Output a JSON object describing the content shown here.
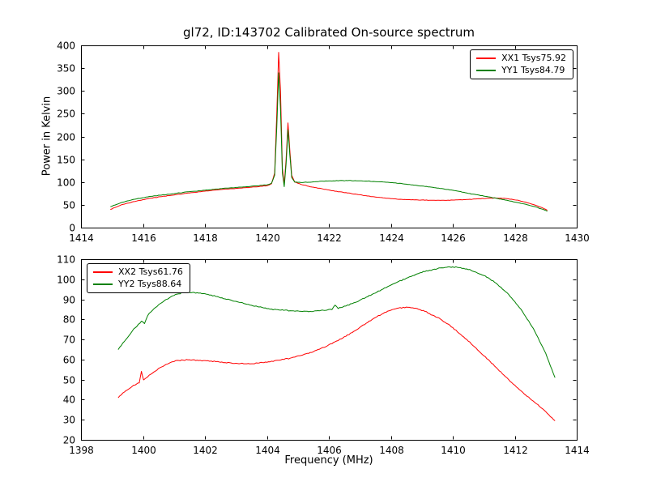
{
  "figure": {
    "background": "#ffffff",
    "axis_color": "#000000"
  },
  "chart_data": [
    {
      "type": "line",
      "title": "gl72, ID:143702 Calibrated On-source spectrum",
      "xlabel": "",
      "ylabel": "Power in Kelvin",
      "xlim": [
        1414,
        1430
      ],
      "ylim": [
        0,
        400
      ],
      "xticks": [
        1414,
        1416,
        1418,
        1420,
        1422,
        1424,
        1426,
        1428,
        1430
      ],
      "yticks": [
        0,
        50,
        100,
        150,
        200,
        250,
        300,
        350,
        400
      ],
      "grid": false,
      "legend_position": "top-right",
      "series": [
        {
          "name": "XX1 Tsys75.92",
          "color": "#ff0000",
          "noise": 0.8,
          "points": [
            [
              1414.95,
              40
            ],
            [
              1415.3,
              50
            ],
            [
              1415.7,
              57
            ],
            [
              1416.2,
              64
            ],
            [
              1416.8,
              70
            ],
            [
              1417.4,
              75
            ],
            [
              1418.0,
              80
            ],
            [
              1418.6,
              84
            ],
            [
              1419.2,
              87
            ],
            [
              1419.7,
              90
            ],
            [
              1420.0,
              92
            ],
            [
              1420.15,
              96
            ],
            [
              1420.25,
              120
            ],
            [
              1420.32,
              250
            ],
            [
              1420.38,
              385
            ],
            [
              1420.44,
              300
            ],
            [
              1420.5,
              130
            ],
            [
              1420.56,
              95
            ],
            [
              1420.62,
              150
            ],
            [
              1420.68,
              230
            ],
            [
              1420.74,
              170
            ],
            [
              1420.8,
              115
            ],
            [
              1420.9,
              100
            ],
            [
              1421.1,
              95
            ],
            [
              1421.4,
              90
            ],
            [
              1421.8,
              85
            ],
            [
              1422.3,
              79
            ],
            [
              1422.8,
              74
            ],
            [
              1423.3,
              69
            ],
            [
              1423.8,
              65
            ],
            [
              1424.3,
              62
            ],
            [
              1424.8,
              61
            ],
            [
              1425.3,
              60
            ],
            [
              1425.8,
              60
            ],
            [
              1426.3,
              61
            ],
            [
              1426.8,
              63
            ],
            [
              1427.3,
              65
            ],
            [
              1427.7,
              64
            ],
            [
              1428.1,
              60
            ],
            [
              1428.5,
              53
            ],
            [
              1428.8,
              46
            ],
            [
              1429.05,
              38
            ]
          ]
        },
        {
          "name": "YY1 Tsys84.79",
          "color": "#008000",
          "noise": 0.8,
          "points": [
            [
              1414.95,
              46
            ],
            [
              1415.3,
              55
            ],
            [
              1415.7,
              62
            ],
            [
              1416.2,
              68
            ],
            [
              1416.8,
              73
            ],
            [
              1417.4,
              78
            ],
            [
              1418.0,
              82
            ],
            [
              1418.6,
              86
            ],
            [
              1419.2,
              89
            ],
            [
              1419.7,
              92
            ],
            [
              1420.0,
              94
            ],
            [
              1420.15,
              97
            ],
            [
              1420.25,
              115
            ],
            [
              1420.32,
              220
            ],
            [
              1420.38,
              340
            ],
            [
              1420.44,
              260
            ],
            [
              1420.5,
              120
            ],
            [
              1420.56,
              90
            ],
            [
              1420.62,
              140
            ],
            [
              1420.68,
              215
            ],
            [
              1420.74,
              160
            ],
            [
              1420.8,
              110
            ],
            [
              1420.9,
              100
            ],
            [
              1421.1,
              99
            ],
            [
              1421.4,
              100
            ],
            [
              1421.8,
              102
            ],
            [
              1422.3,
              103
            ],
            [
              1422.8,
              103
            ],
            [
              1423.3,
              102
            ],
            [
              1423.8,
              100
            ],
            [
              1424.3,
              97
            ],
            [
              1424.8,
              93
            ],
            [
              1425.3,
              89
            ],
            [
              1426.0,
              82
            ],
            [
              1426.6,
              74
            ],
            [
              1427.2,
              67
            ],
            [
              1427.8,
              59
            ],
            [
              1428.3,
              52
            ],
            [
              1428.7,
              45
            ],
            [
              1429.05,
              36
            ]
          ]
        }
      ]
    },
    {
      "type": "line",
      "title": "",
      "xlabel": "Frequency (MHz)",
      "ylabel": "",
      "xlim": [
        1398,
        1414
      ],
      "ylim": [
        20,
        110
      ],
      "xticks": [
        1398,
        1400,
        1402,
        1404,
        1406,
        1408,
        1410,
        1412,
        1414
      ],
      "yticks": [
        20,
        30,
        40,
        50,
        60,
        70,
        80,
        90,
        100,
        110
      ],
      "grid": false,
      "legend_position": "top-left",
      "series": [
        {
          "name": "XX2 Tsys61.76",
          "color": "#ff0000",
          "noise": 0.4,
          "points": [
            [
              1399.2,
              41
            ],
            [
              1399.45,
              44.5
            ],
            [
              1399.7,
              47
            ],
            [
              1399.88,
              48.5
            ],
            [
              1399.95,
              54
            ],
            [
              1400.02,
              50
            ],
            [
              1400.2,
              52
            ],
            [
              1400.5,
              55.5
            ],
            [
              1400.8,
              58
            ],
            [
              1401.1,
              59.5
            ],
            [
              1401.5,
              60
            ],
            [
              1401.9,
              59.5
            ],
            [
              1402.3,
              59
            ],
            [
              1402.7,
              58.5
            ],
            [
              1403.1,
              58
            ],
            [
              1403.5,
              58
            ],
            [
              1403.9,
              58.5
            ],
            [
              1404.3,
              59.5
            ],
            [
              1404.7,
              60.5
            ],
            [
              1405.1,
              62
            ],
            [
              1405.5,
              64
            ],
            [
              1405.9,
              66.5
            ],
            [
              1406.3,
              69.5
            ],
            [
              1406.7,
              73
            ],
            [
              1407.1,
              77
            ],
            [
              1407.5,
              81
            ],
            [
              1407.9,
              84
            ],
            [
              1408.2,
              85.5
            ],
            [
              1408.5,
              86
            ],
            [
              1408.8,
              85.5
            ],
            [
              1409.1,
              84
            ],
            [
              1409.5,
              81
            ],
            [
              1409.9,
              77
            ],
            [
              1410.3,
              72
            ],
            [
              1410.7,
              66.5
            ],
            [
              1411.1,
              60.5
            ],
            [
              1411.5,
              54.5
            ],
            [
              1411.9,
              48.5
            ],
            [
              1412.3,
              43
            ],
            [
              1412.7,
              38
            ],
            [
              1413.0,
              34
            ],
            [
              1413.3,
              29.5
            ]
          ]
        },
        {
          "name": "YY2 Tsys88.64",
          "color": "#008000",
          "noise": 0.4,
          "points": [
            [
              1399.2,
              65
            ],
            [
              1399.45,
              70
            ],
            [
              1399.7,
              75
            ],
            [
              1399.95,
              79
            ],
            [
              1400.05,
              78
            ],
            [
              1400.15,
              82
            ],
            [
              1400.4,
              86
            ],
            [
              1400.7,
              89.5
            ],
            [
              1401.0,
              92
            ],
            [
              1401.3,
              93.5
            ],
            [
              1401.6,
              93.5
            ],
            [
              1401.9,
              93
            ],
            [
              1402.2,
              92
            ],
            [
              1402.6,
              90.5
            ],
            [
              1403.0,
              89
            ],
            [
              1403.4,
              87.5
            ],
            [
              1403.8,
              86
            ],
            [
              1404.2,
              85
            ],
            [
              1404.6,
              84.5
            ],
            [
              1405.0,
              84
            ],
            [
              1405.4,
              84
            ],
            [
              1405.8,
              84.5
            ],
            [
              1406.1,
              85
            ],
            [
              1406.2,
              87
            ],
            [
              1406.3,
              85.5
            ],
            [
              1406.6,
              87
            ],
            [
              1407.0,
              89.5
            ],
            [
              1407.4,
              92.5
            ],
            [
              1407.8,
              95.5
            ],
            [
              1408.2,
              98.5
            ],
            [
              1408.6,
              101
            ],
            [
              1409.0,
              103.5
            ],
            [
              1409.4,
              105
            ],
            [
              1409.8,
              106
            ],
            [
              1410.2,
              106
            ],
            [
              1410.6,
              104.5
            ],
            [
              1411.0,
              102
            ],
            [
              1411.4,
              98
            ],
            [
              1411.8,
              92.5
            ],
            [
              1412.2,
              85
            ],
            [
              1412.6,
              75.5
            ],
            [
              1413.0,
              63
            ],
            [
              1413.3,
              51
            ]
          ]
        }
      ]
    }
  ]
}
